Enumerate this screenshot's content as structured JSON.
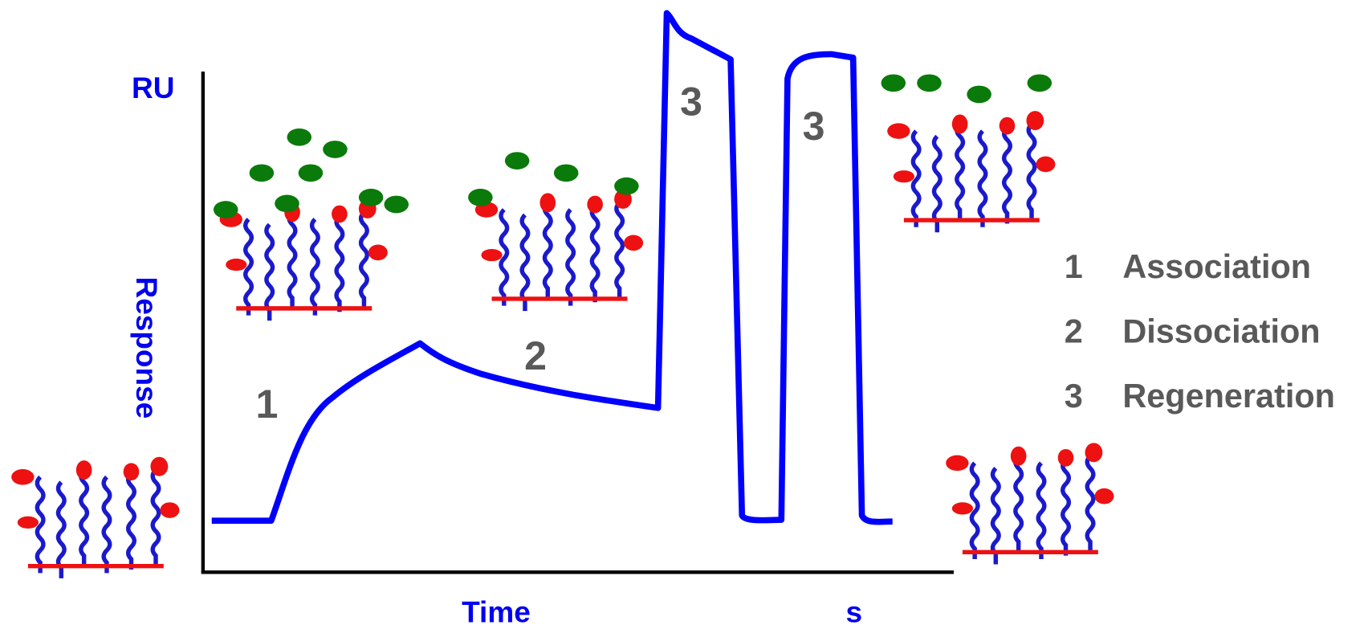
{
  "axis": {
    "y_unit": "RU",
    "y_label": "Response",
    "x_label": "Time",
    "x_unit": "s"
  },
  "phase_labels": [
    "1",
    "2",
    "3",
    "3"
  ],
  "legend": [
    {
      "number": "1",
      "label": "Association"
    },
    {
      "number": "2",
      "label": "Dissociation"
    },
    {
      "number": "3",
      "label": "Regeneration"
    }
  ]
}
